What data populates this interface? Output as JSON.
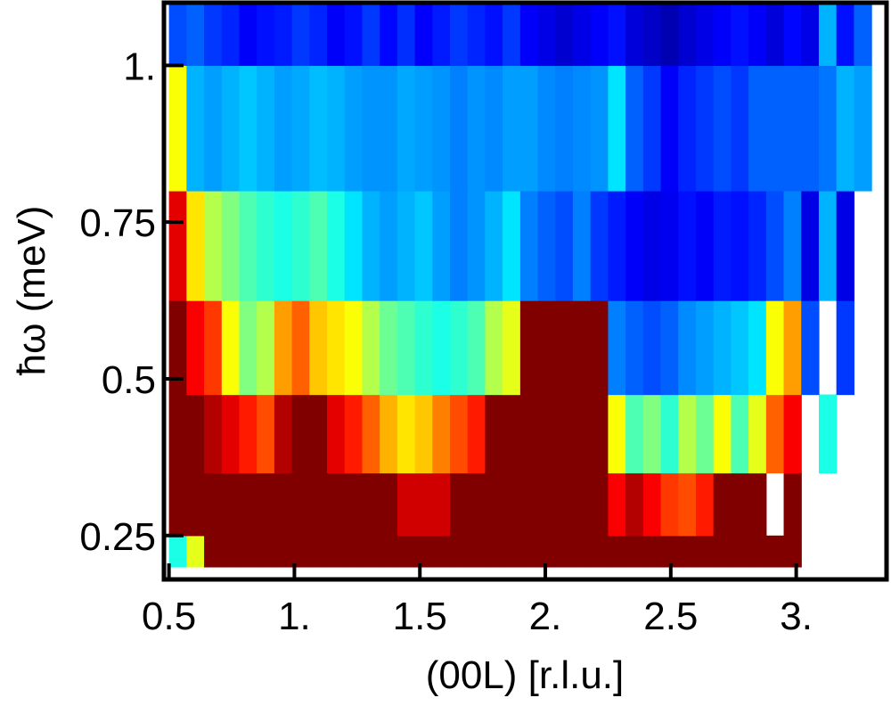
{
  "chart_data": {
    "type": "heatmap",
    "title": "",
    "xlabel": "(00L) [r.l.u.]",
    "ylabel": "ħω (meV)",
    "xlim": [
      0.48,
      3.36
    ],
    "ylim": [
      0.18,
      1.1
    ],
    "xticks": [
      0.5,
      1.0,
      1.5,
      2.0,
      2.5,
      3.0
    ],
    "xtick_labels": [
      "0.5",
      "1.",
      "1.5",
      "2.",
      "2.5",
      "3."
    ],
    "yticks": [
      0.25,
      0.5,
      0.75,
      1.0
    ],
    "ytick_labels": [
      "0.25",
      "0.5",
      "0.75",
      "1."
    ],
    "colormap": "jet",
    "color_scale_note": "intensity 0 (blue) to 1 (dark red)",
    "energy_bands_meV": [
      {
        "e_min": 0.2,
        "e_max": 0.25
      },
      {
        "e_min": 0.25,
        "e_max": 0.35
      },
      {
        "e_min": 0.35,
        "e_max": 0.475
      },
      {
        "e_min": 0.475,
        "e_max": 0.625
      },
      {
        "e_min": 0.625,
        "e_max": 0.8
      },
      {
        "e_min": 0.8,
        "e_max": 1.0
      },
      {
        "e_min": 1.0,
        "e_max": 1.1
      }
    ],
    "l_bin_edges": [
      0.5,
      0.57,
      0.64,
      0.71,
      0.78,
      0.85,
      0.92,
      0.99,
      1.06,
      1.13,
      1.2,
      1.27,
      1.34,
      1.41,
      1.48,
      1.55,
      1.62,
      1.69,
      1.76,
      1.83,
      1.9,
      1.97,
      2.04,
      2.11,
      2.18,
      2.25,
      2.32,
      2.39,
      2.46,
      2.53,
      2.6,
      2.67,
      2.74,
      2.81,
      2.88,
      2.95,
      3.02,
      3.09,
      3.16,
      3.23,
      3.3
    ],
    "intensity": [
      [
        0.4,
        0.6,
        1,
        1,
        1,
        1,
        1,
        1,
        1,
        1,
        1,
        1,
        1,
        1,
        1,
        1,
        1,
        1,
        1,
        1,
        1,
        1,
        1,
        1,
        1,
        1,
        1,
        1,
        1,
        1,
        1,
        1,
        1,
        1,
        1,
        1,
        null,
        null,
        null,
        null
      ],
      [
        1,
        1,
        1,
        1,
        1,
        1,
        1,
        1,
        1,
        1,
        1,
        1,
        1,
        0.92,
        0.92,
        0.92,
        1,
        1,
        1,
        1,
        1,
        1,
        1,
        1,
        1,
        0.88,
        0.95,
        0.88,
        0.82,
        0.8,
        0.85,
        1,
        1,
        1,
        null,
        1,
        null,
        null,
        null,
        null
      ],
      [
        1,
        1,
        0.95,
        0.9,
        0.85,
        0.8,
        0.95,
        1,
        1,
        0.9,
        0.85,
        0.78,
        0.7,
        0.65,
        0.68,
        0.75,
        0.8,
        0.85,
        1,
        1,
        1,
        1,
        1,
        1,
        1,
        0.62,
        0.45,
        0.5,
        0.42,
        0.55,
        0.48,
        0.62,
        0.45,
        0.6,
        0.78,
        0.88,
        null,
        0.4,
        null,
        null
      ],
      [
        1,
        0.88,
        0.82,
        0.62,
        0.5,
        0.55,
        0.72,
        0.78,
        0.68,
        0.65,
        0.62,
        0.55,
        0.48,
        0.45,
        0.42,
        0.4,
        0.42,
        0.45,
        0.55,
        0.6,
        1,
        1,
        1,
        1,
        1,
        0.25,
        0.22,
        0.2,
        0.22,
        0.26,
        0.28,
        0.3,
        0.32,
        0.35,
        0.62,
        0.72,
        0.2,
        null,
        0.18,
        null
      ],
      [
        0.9,
        0.65,
        0.55,
        0.5,
        0.45,
        0.42,
        0.4,
        0.42,
        0.45,
        0.4,
        0.35,
        0.3,
        0.28,
        0.3,
        0.32,
        0.28,
        0.25,
        0.27,
        0.3,
        0.35,
        0.25,
        0.22,
        0.2,
        0.25,
        0.18,
        0.15,
        0.12,
        0.1,
        0.11,
        0.14,
        0.12,
        0.15,
        0.14,
        0.16,
        0.2,
        0.25,
        0.1,
        0.3,
        0.1,
        null
      ],
      [
        0.62,
        0.3,
        0.28,
        0.3,
        0.32,
        0.3,
        0.28,
        0.29,
        0.31,
        0.3,
        0.28,
        0.27,
        0.27,
        0.29,
        0.28,
        0.27,
        0.25,
        0.27,
        0.26,
        0.28,
        0.28,
        0.26,
        0.25,
        0.26,
        0.27,
        0.35,
        0.22,
        0.18,
        0.12,
        0.16,
        0.18,
        0.2,
        0.18,
        0.22,
        0.22,
        0.22,
        0.22,
        0.24,
        0.3,
        0.28
      ],
      [
        0.2,
        0.22,
        0.18,
        0.16,
        0.12,
        0.14,
        0.15,
        0.18,
        0.16,
        0.12,
        0.14,
        0.18,
        0.13,
        0.17,
        0.12,
        0.15,
        0.18,
        0.16,
        0.14,
        0.18,
        0.12,
        0.1,
        0.08,
        0.1,
        0.12,
        0.14,
        0.09,
        0.07,
        0.05,
        0.08,
        0.1,
        0.12,
        0.14,
        0.12,
        0.09,
        0.13,
        0.1,
        0.3,
        0.14,
        0.22
      ]
    ]
  }
}
